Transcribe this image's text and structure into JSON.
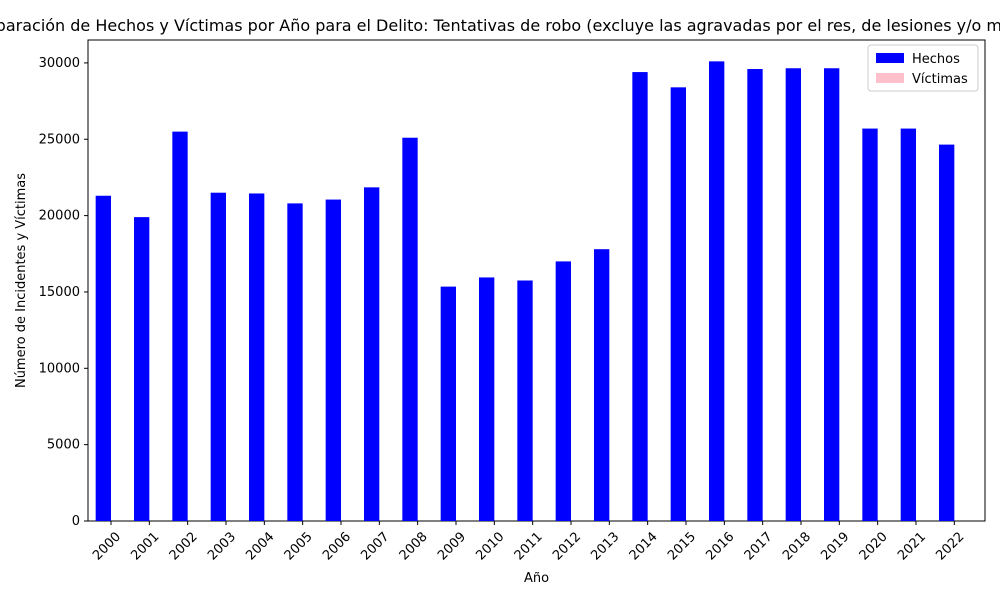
{
  "chart_data": {
    "type": "bar",
    "title": "Comparación de Hechos y Víctimas por Año para el Delito: Tentativas de robo (excluye las agravadas por el res, de lesiones y/o muerte)",
    "xlabel": "Año",
    "ylabel": "Número de Incidentes y Víctimas",
    "ylim": [
      0,
      31500
    ],
    "yticks": [
      0,
      5000,
      10000,
      15000,
      20000,
      25000,
      30000
    ],
    "categories": [
      "2000",
      "2001",
      "2002",
      "2003",
      "2004",
      "2005",
      "2006",
      "2007",
      "2008",
      "2009",
      "2010",
      "2011",
      "2012",
      "2013",
      "2014",
      "2015",
      "2016",
      "2017",
      "2018",
      "2019",
      "2020",
      "2021",
      "2022"
    ],
    "series": [
      {
        "name": "Hechos",
        "color": "#0000ff",
        "values": [
          21300,
          19900,
          25500,
          21500,
          21450,
          20800,
          21050,
          21850,
          25100,
          15350,
          15950,
          15750,
          17000,
          17800,
          29400,
          28400,
          30100,
          29600,
          29650,
          29650,
          25700,
          25700,
          24650
        ]
      },
      {
        "name": "Víctimas",
        "color": "#ffc0cb",
        "values": [
          0,
          0,
          0,
          0,
          0,
          0,
          0,
          0,
          0,
          0,
          0,
          0,
          0,
          0,
          0,
          0,
          0,
          0,
          0,
          0,
          0,
          0,
          0
        ]
      }
    ],
    "legend_position": "top-right",
    "grid": false
  }
}
